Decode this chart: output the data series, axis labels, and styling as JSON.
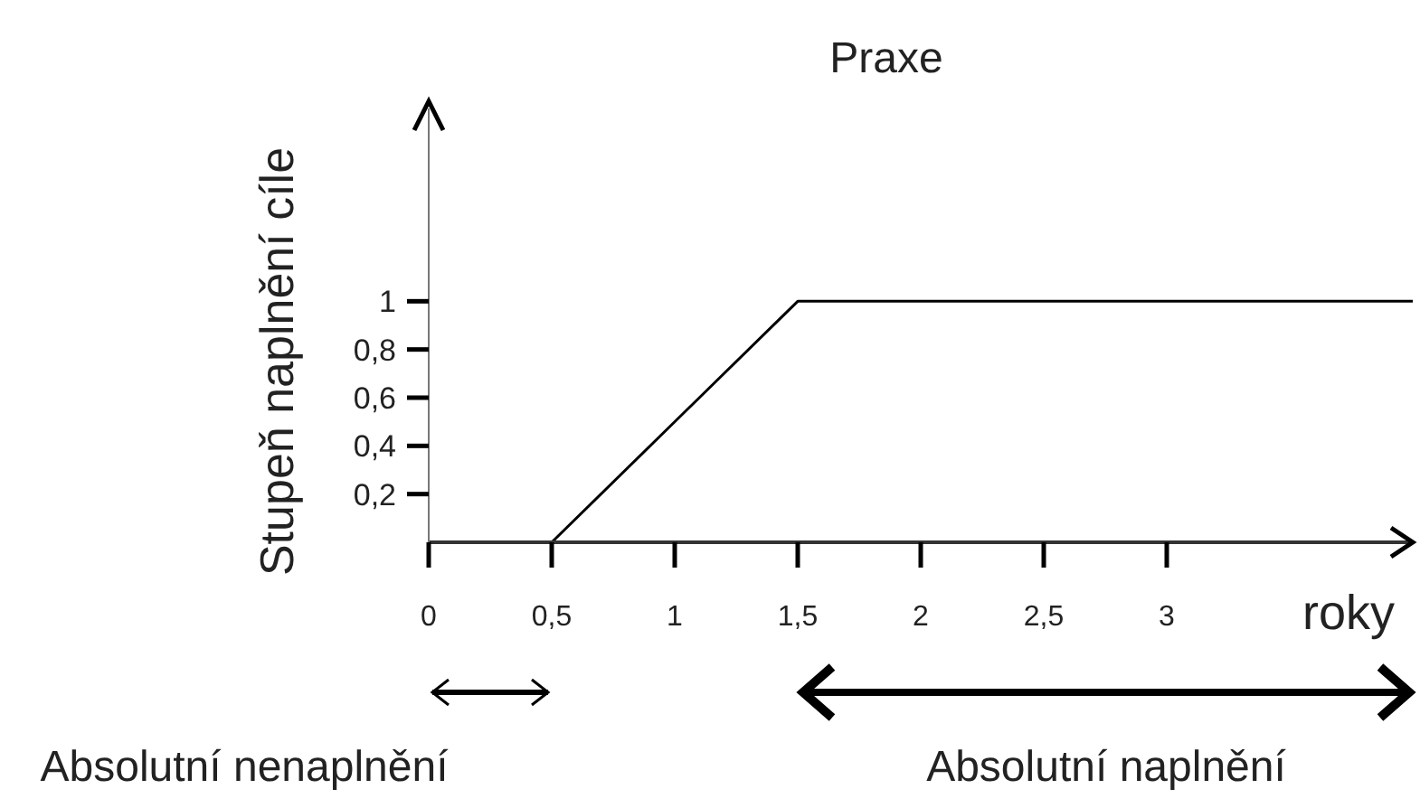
{
  "chart_data": {
    "type": "line",
    "title": "Praxe",
    "xlabel": "roky",
    "ylabel": "Stupeň naplnění cíle",
    "series": [
      {
        "color": "#000000",
        "x": [
          0.5,
          1.5,
          4
        ],
        "values": [
          0,
          1,
          1
        ]
      }
    ],
    "xlim": [
      0,
      4
    ],
    "ylim": [
      0,
      1.8
    ],
    "xticks": [
      {
        "value": 0,
        "label": "0"
      },
      {
        "value": 0.5,
        "label": "0,5"
      },
      1,
      {
        "value": 1.5,
        "label": "1,5"
      },
      2,
      {
        "value": 2.5,
        "label": "2,5"
      },
      3
    ],
    "yticks": [
      {
        "value": 0.2,
        "label": "0,2"
      },
      {
        "value": 0.4,
        "label": "0,4"
      },
      {
        "value": 0.6,
        "label": "0,6"
      },
      {
        "value": 0.8,
        "label": "0,8"
      },
      1
    ],
    "annotations": [
      "Absolutní nenaplnění",
      "Absolutní naplnění"
    ]
  }
}
